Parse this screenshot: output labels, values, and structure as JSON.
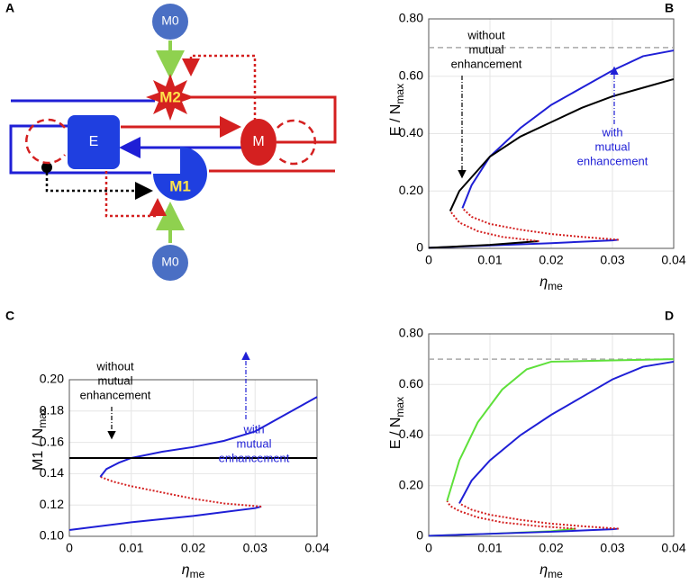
{
  "diagram": {
    "panel": "A",
    "nodes": [
      "M0",
      "M2",
      "E",
      "M",
      "M1",
      "M0"
    ]
  },
  "chart_data": [
    {
      "type": "line",
      "panel": "B",
      "ylabel": "E / N",
      "ylabel_sub": "max",
      "xlabel": "η",
      "xlabel_sub": "me",
      "xlim": [
        0,
        0.04
      ],
      "xticks": [
        0,
        0.01,
        0.02,
        0.03,
        0.04
      ],
      "ylim": [
        0,
        0.8
      ],
      "yticks": [
        0,
        {
          "value": 0.2,
          "label": "0.20"
        },
        {
          "value": 0.4,
          "label": "0.40"
        },
        {
          "value": 0.6,
          "label": "0.60"
        },
        {
          "value": 0.8,
          "label": "0.80"
        }
      ],
      "grid": true,
      "hline": 0.7,
      "annotations": [
        {
          "lines": [
            "without",
            "mutual",
            "enhancement"
          ],
          "color": "#000000"
        },
        {
          "lines": [
            "with",
            "mutual",
            "enhancement"
          ],
          "color": "#1f1fd6"
        }
      ],
      "series": [
        {
          "color": "#1f1fd6",
          "style": "solid",
          "x": [
            0,
            0.01,
            0.02,
            0.03,
            0.031
          ],
          "values": [
            0.002,
            0.01,
            0.018,
            0.028,
            0.03
          ]
        },
        {
          "color": "#d42020",
          "style": "dotted",
          "x": [
            0.031,
            0.025,
            0.02,
            0.015,
            0.01,
            0.007,
            0.0055
          ],
          "values": [
            0.03,
            0.04,
            0.05,
            0.065,
            0.085,
            0.11,
            0.14
          ]
        },
        {
          "color": "#1f1fd6",
          "style": "solid",
          "x": [
            0.0055,
            0.007,
            0.01,
            0.015,
            0.02,
            0.025,
            0.03,
            0.035,
            0.04
          ],
          "values": [
            0.14,
            0.22,
            0.32,
            0.42,
            0.5,
            0.56,
            0.62,
            0.67,
            0.69
          ]
        },
        {
          "color": "#000000",
          "style": "solid",
          "x": [
            0,
            0.01,
            0.018
          ],
          "values": [
            0.002,
            0.012,
            0.025
          ]
        },
        {
          "color": "#d42020",
          "style": "dotted",
          "x": [
            0.018,
            0.012,
            0.008,
            0.005,
            0.0035
          ],
          "values": [
            0.025,
            0.04,
            0.06,
            0.09,
            0.13
          ]
        },
        {
          "color": "#000000",
          "style": "solid",
          "x": [
            0.0035,
            0.005,
            0.01,
            0.015,
            0.02,
            0.025,
            0.03,
            0.035,
            0.04
          ],
          "values": [
            0.13,
            0.2,
            0.32,
            0.39,
            0.44,
            0.49,
            0.53,
            0.56,
            0.59
          ]
        }
      ]
    },
    {
      "type": "line",
      "panel": "C",
      "ylabel": "M1 / N",
      "ylabel_sub": "max",
      "xlabel": "η",
      "xlabel_sub": "me",
      "xlim": [
        0,
        0.04
      ],
      "xticks": [
        0,
        0.01,
        0.02,
        0.03,
        0.04
      ],
      "ylim": [
        0.1,
        0.2
      ],
      "yticks": [
        {
          "value": 0.1,
          "label": "0.10"
        },
        0.12,
        0.14,
        0.16,
        0.18,
        {
          "value": 0.2,
          "label": "0.20"
        }
      ],
      "grid": true,
      "annotations": [
        {
          "lines": [
            "without",
            "mutual",
            "enhancement"
          ],
          "color": "#000000"
        },
        {
          "lines": [
            "with",
            "mutual",
            "enhancement"
          ],
          "color": "#1f1fd6"
        }
      ],
      "series": [
        {
          "color": "#1f1fd6",
          "style": "solid",
          "x": [
            0,
            0.01,
            0.02,
            0.03,
            0.031
          ],
          "values": [
            0.104,
            0.109,
            0.113,
            0.118,
            0.119
          ]
        },
        {
          "color": "#d42020",
          "style": "dotted",
          "x": [
            0.031,
            0.025,
            0.02,
            0.015,
            0.01,
            0.007,
            0.005
          ],
          "values": [
            0.119,
            0.121,
            0.124,
            0.128,
            0.132,
            0.135,
            0.138
          ]
        },
        {
          "color": "#1f1fd6",
          "style": "solid",
          "x": [
            0.005,
            0.006,
            0.008,
            0.01,
            0.015,
            0.02,
            0.025,
            0.03,
            0.035,
            0.04
          ],
          "values": [
            0.138,
            0.143,
            0.147,
            0.15,
            0.154,
            0.157,
            0.161,
            0.167,
            0.178,
            0.189
          ]
        },
        {
          "color": "#000000",
          "style": "solid",
          "x": [
            0,
            0.04
          ],
          "values": [
            0.15,
            0.15
          ]
        }
      ]
    },
    {
      "type": "line",
      "panel": "D",
      "ylabel": "E / N",
      "ylabel_sub": "max",
      "xlabel": "η",
      "xlabel_sub": "me",
      "xlim": [
        0,
        0.04
      ],
      "xticks": [
        0,
        0.01,
        0.02,
        0.03,
        0.04
      ],
      "ylim": [
        0,
        0.8
      ],
      "yticks": [
        0,
        {
          "value": 0.2,
          "label": "0.20"
        },
        {
          "value": 0.4,
          "label": "0.40"
        },
        {
          "value": 0.6,
          "label": "0.60"
        },
        {
          "value": 0.8,
          "label": "0.80"
        }
      ],
      "grid": true,
      "hline": 0.7,
      "annotations": [],
      "series": [
        {
          "color": "#5ee03a",
          "style": "solid",
          "x": [
            0,
            0.01,
            0.02,
            0.024
          ],
          "values": [
            0.002,
            0.01,
            0.02,
            0.03
          ]
        },
        {
          "color": "#d42020",
          "style": "dotted",
          "x": [
            0.024,
            0.018,
            0.012,
            0.008,
            0.005,
            0.0035,
            0.003
          ],
          "values": [
            0.03,
            0.04,
            0.055,
            0.075,
            0.1,
            0.12,
            0.14
          ]
        },
        {
          "color": "#5ee03a",
          "style": "solid",
          "x": [
            0.003,
            0.005,
            0.008,
            0.012,
            0.016,
            0.02,
            0.03,
            0.04
          ],
          "values": [
            0.14,
            0.3,
            0.45,
            0.58,
            0.66,
            0.69,
            0.695,
            0.7
          ]
        },
        {
          "color": "#1f1fd6",
          "style": "solid",
          "x": [
            0,
            0.01,
            0.02,
            0.03,
            0.031
          ],
          "values": [
            0.002,
            0.01,
            0.018,
            0.028,
            0.03
          ]
        },
        {
          "color": "#d42020",
          "style": "dotted",
          "x": [
            0.031,
            0.025,
            0.02,
            0.015,
            0.01,
            0.007,
            0.005
          ],
          "values": [
            0.03,
            0.04,
            0.05,
            0.065,
            0.085,
            0.105,
            0.13
          ]
        },
        {
          "color": "#1f1fd6",
          "style": "solid",
          "x": [
            0.005,
            0.007,
            0.01,
            0.015,
            0.02,
            0.025,
            0.03,
            0.035,
            0.04
          ],
          "values": [
            0.13,
            0.22,
            0.3,
            0.4,
            0.48,
            0.55,
            0.62,
            0.67,
            0.69
          ]
        }
      ]
    }
  ]
}
